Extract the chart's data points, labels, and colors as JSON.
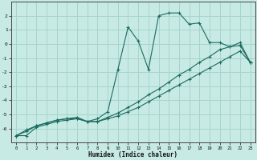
{
  "bg_color": "#c8eae5",
  "grid_color": "#a8d4ce",
  "line_color": "#1a6b5e",
  "xlabel": "Humidex (Indice chaleur)",
  "xlim": [
    -0.5,
    23.5
  ],
  "ylim": [
    -7.0,
    3.0
  ],
  "yticks": [
    -6,
    -5,
    -4,
    -3,
    -2,
    -1,
    0,
    1,
    2
  ],
  "xticks": [
    0,
    1,
    2,
    3,
    4,
    5,
    6,
    7,
    8,
    9,
    10,
    11,
    12,
    13,
    14,
    15,
    16,
    17,
    18,
    19,
    20,
    21,
    22,
    23
  ],
  "curve1_x": [
    0,
    1,
    2,
    3,
    4,
    5,
    6,
    7,
    8,
    9,
    10,
    11,
    12,
    13,
    14,
    15,
    16,
    17,
    18,
    19,
    20,
    21,
    22,
    23
  ],
  "curve1_y": [
    -6.5,
    -6.5,
    -5.9,
    -5.7,
    -5.5,
    -5.4,
    -5.3,
    -5.5,
    -5.5,
    -5.3,
    -5.1,
    -4.8,
    -4.5,
    -4.1,
    -3.7,
    -3.3,
    -2.9,
    -2.5,
    -2.1,
    -1.7,
    -1.3,
    -0.9,
    -0.5,
    -1.3
  ],
  "curve2_x": [
    0,
    1,
    2,
    3,
    4,
    5,
    6,
    7,
    8,
    9,
    10,
    11,
    12,
    13,
    14,
    15,
    16,
    17,
    18,
    19,
    20,
    21,
    22,
    23
  ],
  "curve2_y": [
    -6.5,
    -6.2,
    -5.8,
    -5.6,
    -5.4,
    -5.3,
    -5.3,
    -5.5,
    -5.5,
    -5.2,
    -4.9,
    -4.5,
    -4.1,
    -3.6,
    -3.2,
    -2.7,
    -2.2,
    -1.8,
    -1.3,
    -0.9,
    -0.4,
    -0.2,
    -0.1,
    -1.3
  ],
  "curve3_x": [
    0,
    1,
    2,
    3,
    4,
    5,
    6,
    7,
    8,
    9,
    10,
    11,
    12,
    13,
    14,
    15,
    16,
    17,
    18,
    19,
    20,
    21,
    22,
    23
  ],
  "curve3_y": [
    -6.5,
    -6.1,
    -5.8,
    -5.6,
    -5.4,
    -5.3,
    -5.2,
    -5.5,
    -5.3,
    -4.8,
    -1.8,
    1.2,
    0.2,
    -1.8,
    2.0,
    2.2,
    2.2,
    1.4,
    1.5,
    0.1,
    0.1,
    -0.2,
    0.1,
    -1.3
  ]
}
